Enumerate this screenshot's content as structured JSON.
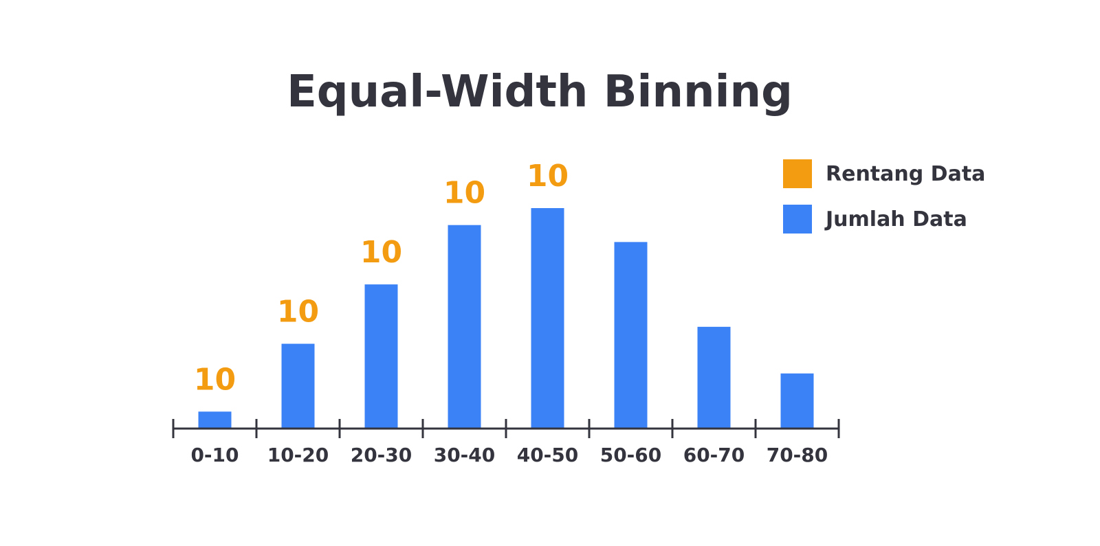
{
  "chart_data": {
    "type": "bar",
    "title": "Equal-Width Binning",
    "xlabel": "",
    "ylabel": "",
    "categories": [
      "0-10",
      "10-20",
      "20-30",
      "30-40",
      "40-50",
      "50-60",
      "60-70",
      "70-80"
    ],
    "series": [
      {
        "name": "Jumlah Data",
        "values": [
          2,
          10,
          17,
          24,
          26,
          22,
          12,
          6.5
        ]
      }
    ],
    "data_labels": [
      "10",
      "10",
      "10",
      "10",
      "10",
      "",
      "",
      ""
    ],
    "ylim": [
      0,
      26
    ],
    "grid": false,
    "legend_position": "top-right",
    "legend": [
      {
        "name": "Rentang Data",
        "color": "#f39c12"
      },
      {
        "name": "Jumlah Data",
        "color": "#3b82f6"
      }
    ],
    "colors": {
      "bar": "#3b82f6",
      "data_label": "#f39c12",
      "axis": "#33343d",
      "text": "#33343d"
    }
  }
}
